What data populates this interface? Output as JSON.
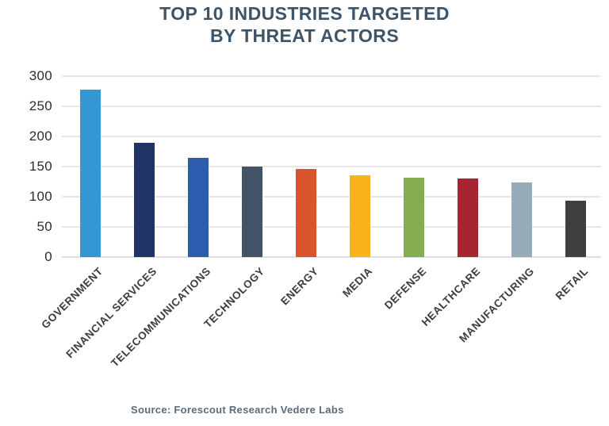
{
  "title": {
    "line1": "TOP 10 INDUSTRIES TARGETED",
    "line2": "BY THREAT ACTORS"
  },
  "source": "Source: Forescout Research Vedere Labs",
  "colors": {
    "title_text": "#3d5469",
    "y_axis_text": "#2d2d2d",
    "x_axis_text": "#3c3c3c",
    "gridline": "#e7e7e7",
    "source_text": "#5a6b7a",
    "background": "#ffffff"
  },
  "chart_data": {
    "type": "bar",
    "title": "TOP 10 INDUSTRIES TARGETED BY THREAT ACTORS",
    "categories": [
      "GOVERNMENT",
      "FINANCIAL SERVICES",
      "TELECOMMUNICATIONS",
      "TECHNOLOGY",
      "ENERGY",
      "MEDIA",
      "DEFENSE",
      "HEALTHCARE",
      "MANUFACTURING",
      "RETAIL"
    ],
    "values": [
      278,
      190,
      165,
      150,
      146,
      135,
      131,
      130,
      124,
      94
    ],
    "bar_colors": [
      "#3397d4",
      "#1f3366",
      "#2d5bad",
      "#415365",
      "#d9532b",
      "#fbb31c",
      "#84ad50",
      "#a52630",
      "#97abb8",
      "#3f3f41"
    ],
    "xlabel": "",
    "ylabel": "",
    "ylim": [
      0,
      300
    ],
    "yticks": [
      300,
      250,
      200,
      150,
      100,
      50,
      0
    ],
    "grid": "horizontal",
    "legend": "none",
    "x_label_rotation_deg": -45,
    "source": "Source: Forescout Research Vedere Labs"
  }
}
